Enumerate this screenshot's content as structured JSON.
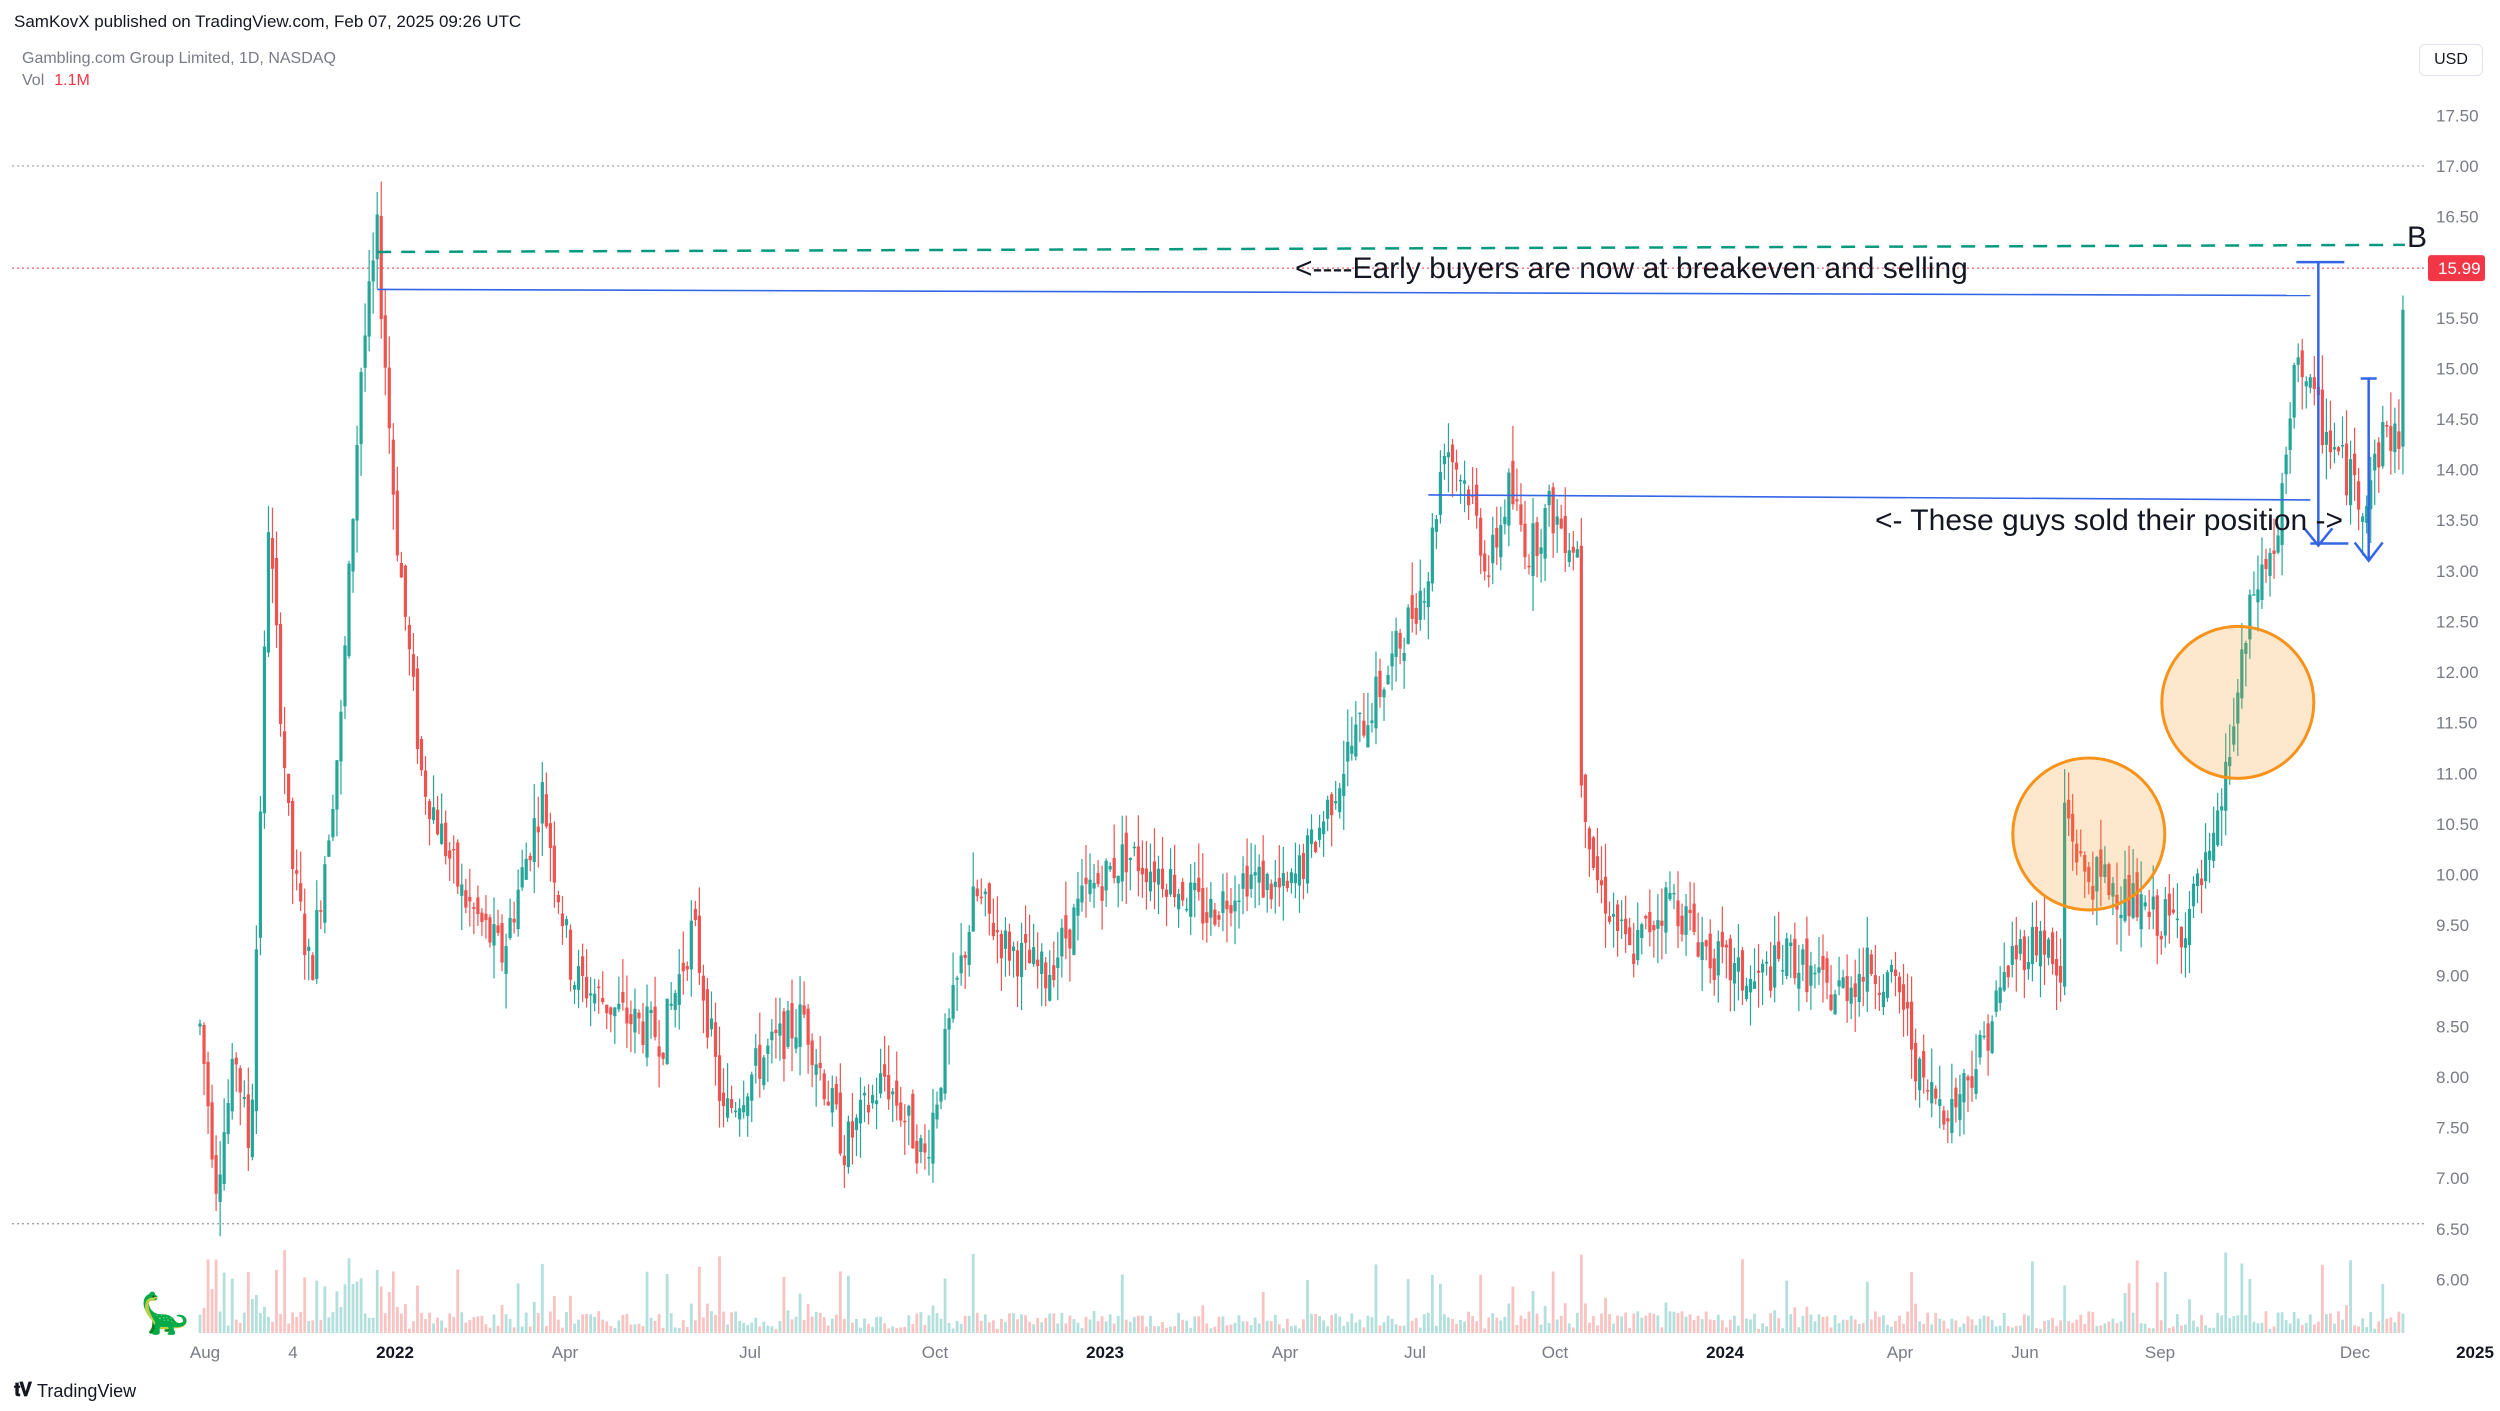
{
  "header": {
    "published": "SamKovX published on TradingView.com, Feb 07, 2025 09:26 UTC",
    "symbol": "Gambling.com Group Limited, 1D, NASDAQ",
    "vol_label": "Vol",
    "vol_value": "1.1M",
    "currency": "USD"
  },
  "footer": {
    "brand": "TradingView"
  },
  "colors": {
    "up": "#26a69a",
    "down": "#ef5350",
    "annot_line": "#3366e6",
    "dashed": "#089981",
    "circle": "#f7931a",
    "last_price": "#f23645"
  },
  "chart_data": {
    "type": "candlestick",
    "y_range": [
      5.5,
      17.75
    ],
    "y_ticks": [
      "17.50",
      "17.00",
      "16.50",
      "16.00",
      "15.50",
      "15.00",
      "14.50",
      "14.00",
      "13.50",
      "13.00",
      "12.50",
      "12.00",
      "11.50",
      "11.00",
      "10.50",
      "10.00",
      "9.50",
      "9.00",
      "8.50",
      "8.00",
      "7.50",
      "7.00",
      "6.50",
      "6.00"
    ],
    "x_ticks": [
      {
        "label": "Aug",
        "bold": false
      },
      {
        "label": "4",
        "bold": false
      },
      {
        "label": "2022",
        "bold": true
      },
      {
        "label": "Apr",
        "bold": false
      },
      {
        "label": "Jul",
        "bold": false
      },
      {
        "label": "Oct",
        "bold": false
      },
      {
        "label": "2023",
        "bold": true
      },
      {
        "label": "Apr",
        "bold": false
      },
      {
        "label": "Jul",
        "bold": false
      },
      {
        "label": "Oct",
        "bold": false
      },
      {
        "label": "2024",
        "bold": true
      },
      {
        "label": "Apr",
        "bold": false
      },
      {
        "label": "Jun",
        "bold": false
      },
      {
        "label": "Sep",
        "bold": false
      },
      {
        "label": "Dec",
        "bold": false
      },
      {
        "label": "2025",
        "bold": true
      }
    ],
    "last_price": "15.99",
    "reference_levels": [
      17.0,
      6.55
    ],
    "price_anchors": [
      [
        0,
        8.5
      ],
      [
        8,
        7.0
      ],
      [
        18,
        8.2
      ],
      [
        25,
        7.2
      ],
      [
        34,
        13.5
      ],
      [
        45,
        10.2
      ],
      [
        55,
        9.0
      ],
      [
        70,
        11.5
      ],
      [
        80,
        15.0
      ],
      [
        88,
        16.3
      ],
      [
        97,
        13.5
      ],
      [
        110,
        11.0
      ],
      [
        130,
        9.8
      ],
      [
        150,
        9.2
      ],
      [
        170,
        10.8
      ],
      [
        185,
        9.0
      ],
      [
        210,
        8.6
      ],
      [
        230,
        8.4
      ],
      [
        245,
        9.5
      ],
      [
        260,
        7.6
      ],
      [
        280,
        8.2
      ],
      [
        300,
        8.6
      ],
      [
        320,
        7.3
      ],
      [
        340,
        8.0
      ],
      [
        360,
        7.2
      ],
      [
        375,
        8.8
      ],
      [
        385,
        9.8
      ],
      [
        400,
        9.3
      ],
      [
        420,
        9.0
      ],
      [
        440,
        9.8
      ],
      [
        460,
        10.2
      ],
      [
        480,
        10.0
      ],
      [
        500,
        9.6
      ],
      [
        520,
        10.0
      ],
      [
        540,
        9.8
      ],
      [
        555,
        10.4
      ],
      [
        570,
        11.2
      ],
      [
        590,
        12.0
      ],
      [
        610,
        13.0
      ],
      [
        618,
        14.3
      ],
      [
        630,
        13.8
      ],
      [
        640,
        13.0
      ],
      [
        650,
        13.8
      ],
      [
        660,
        13.2
      ],
      [
        670,
        13.6
      ],
      [
        685,
        13.2
      ],
      [
        686,
        11.0
      ],
      [
        693,
        10.0
      ],
      [
        710,
        9.2
      ],
      [
        730,
        9.8
      ],
      [
        750,
        9.2
      ],
      [
        770,
        8.9
      ],
      [
        790,
        9.2
      ],
      [
        810,
        8.8
      ],
      [
        830,
        9.1
      ],
      [
        845,
        8.8
      ],
      [
        855,
        7.9
      ],
      [
        870,
        7.7
      ],
      [
        885,
        8.3
      ],
      [
        900,
        9.2
      ],
      [
        915,
        9.4
      ],
      [
        925,
        8.8
      ],
      [
        926,
        10.7
      ],
      [
        935,
        10.0
      ],
      [
        950,
        9.9
      ],
      [
        965,
        9.6
      ],
      [
        985,
        9.5
      ],
      [
        1000,
        10.2
      ],
      [
        1010,
        11.5
      ],
      [
        1020,
        12.8
      ],
      [
        1032,
        13.3
      ],
      [
        1042,
        15.2
      ],
      [
        1050,
        14.6
      ],
      [
        1065,
        14.0
      ],
      [
        1075,
        13.7
      ],
      [
        1085,
        14.4
      ],
      [
        1092,
        14.3
      ],
      [
        1095,
        15.99
      ]
    ],
    "annotations": [
      {
        "text": "<----Early buyers are now at breakeven and selling"
      },
      {
        "text": "<- These guys sold their position ->"
      },
      {
        "text": "B"
      }
    ]
  }
}
